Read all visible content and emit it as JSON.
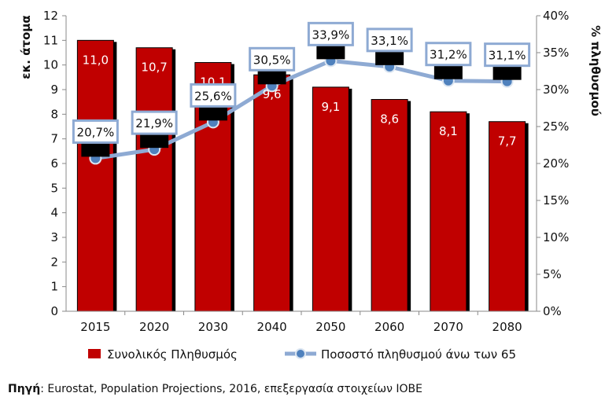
{
  "chart_data": {
    "type": "bar",
    "categories": [
      "2015",
      "2020",
      "2030",
      "2040",
      "2050",
      "2060",
      "2070",
      "2080"
    ],
    "series": [
      {
        "name": "Συνολικός Πληθυσμός",
        "type": "bar",
        "axis": "left",
        "color": "#c00000",
        "values": [
          11.0,
          10.7,
          10.1,
          9.6,
          9.1,
          8.6,
          8.1,
          7.7
        ],
        "labels": [
          "11,0",
          "10,7",
          "10,1",
          "9,6",
          "9,1",
          "8,6",
          "8,1",
          "7,7"
        ]
      },
      {
        "name": "Ποσοστό πληθυσμού άνω των 65",
        "type": "line",
        "axis": "right",
        "color": "#8eaad3",
        "values": [
          20.7,
          21.9,
          25.6,
          30.5,
          33.9,
          33.1,
          31.2,
          31.1
        ],
        "labels": [
          "20,7%",
          "21,9%",
          "25,6%",
          "30,5%",
          "33,9%",
          "33,1%",
          "31,2%",
          "31,1%"
        ]
      }
    ],
    "y_left": {
      "label": "εκ. άτομα",
      "range": [
        0,
        12
      ],
      "ticks": [
        "0",
        "1",
        "2",
        "3",
        "4",
        "5",
        "6",
        "7",
        "8",
        "9",
        "10",
        "11",
        "12"
      ]
    },
    "y_right": {
      "label": "% πληθυσμού",
      "range": [
        0,
        40
      ],
      "ticks": [
        "0%",
        "5%",
        "10%",
        "15%",
        "20%",
        "25%",
        "30%",
        "35%",
        "40%"
      ]
    },
    "legend_position": "bottom",
    "grid": false
  },
  "source": {
    "label": "Πηγή",
    "text": ": Eurostat, Population Projections, 2016, επεξεργασία στοιχείων ΙΟΒΕ"
  }
}
